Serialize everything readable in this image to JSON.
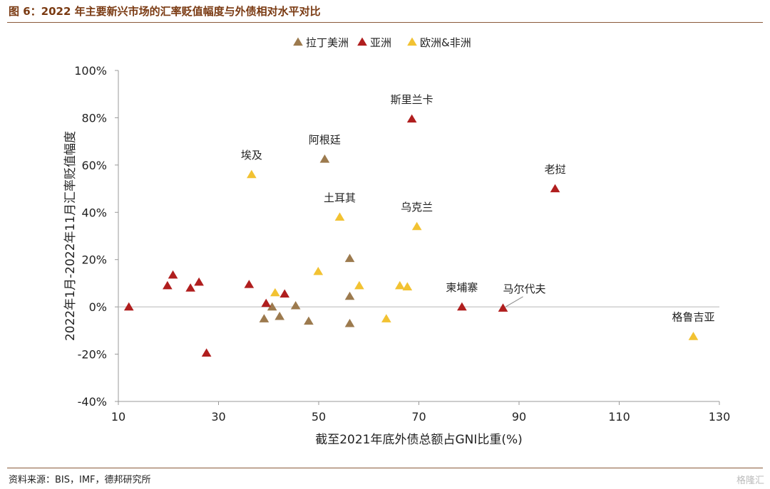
{
  "header": {
    "title": "图 6：2022 年主要新兴市场的汇率贬值幅度与外债相对水平对比"
  },
  "footer": {
    "source": "资料来源：BIS，IMF，德邦研究所",
    "watermark": "格隆汇"
  },
  "colors": {
    "latin_america": "#9c7a4e",
    "asia": "#b01e1e",
    "europe_africa": "#f2c232",
    "title": "#7a3a12",
    "rule": "#8a5a3a"
  },
  "chart_data": {
    "type": "scatter",
    "xlabel": "截至2021年底外债总额占GNI比重(%)",
    "ylabel": "2022年1月-2022年11月汇率贬值幅度",
    "xlim": [
      10,
      130
    ],
    "ylim": [
      -40,
      100
    ],
    "x_ticks": [
      "10",
      "30",
      "50",
      "70",
      "90",
      "110",
      "130"
    ],
    "y_ticks": [
      "-40%",
      "-20%",
      "0%",
      "20%",
      "40%",
      "60%",
      "80%",
      "100%"
    ],
    "grid": false,
    "legend_position": "top",
    "series": [
      {
        "name": "拉丁美洲",
        "color": "#9c7a4e",
        "points": [
          [
            51.2,
            62.5
          ],
          [
            56.2,
            20.5
          ],
          [
            56.2,
            4.5
          ],
          [
            56.2,
            -7
          ],
          [
            45.4,
            0.5
          ],
          [
            39.1,
            -5
          ],
          [
            40.7,
            0
          ],
          [
            42.2,
            -4
          ],
          [
            48,
            -6
          ]
        ]
      },
      {
        "name": "亚洲",
        "color": "#b01e1e",
        "points": [
          [
            68.6,
            79.5
          ],
          [
            97.2,
            50
          ],
          [
            12.1,
            0
          ],
          [
            19.8,
            9
          ],
          [
            20.9,
            13.5
          ],
          [
            24.4,
            8
          ],
          [
            26.1,
            10.5
          ],
          [
            36.1,
            9.5
          ],
          [
            39.5,
            1.5
          ],
          [
            43.2,
            5.5
          ],
          [
            27.6,
            -19.5
          ],
          [
            78.6,
            0
          ],
          [
            86.8,
            -0.5
          ]
        ]
      },
      {
        "name": "欧洲&非洲",
        "color": "#f2c232",
        "points": [
          [
            36.6,
            56
          ],
          [
            54.2,
            38
          ],
          [
            69.6,
            34
          ],
          [
            49.9,
            15
          ],
          [
            41.3,
            6
          ],
          [
            58.1,
            9
          ],
          [
            66.2,
            9
          ],
          [
            67.7,
            8.5
          ],
          [
            63.5,
            -5
          ],
          [
            124.8,
            -12.5
          ]
        ]
      }
    ],
    "annotations": [
      {
        "text": "斯里兰卡",
        "x": 68.6,
        "y": 79.5
      },
      {
        "text": "阿根廷",
        "x": 51.2,
        "y": 62.5
      },
      {
        "text": "埃及",
        "x": 36.6,
        "y": 56
      },
      {
        "text": "老挝",
        "x": 97.2,
        "y": 50
      },
      {
        "text": "土耳其",
        "x": 54.2,
        "y": 38
      },
      {
        "text": "乌克兰",
        "x": 69.6,
        "y": 34
      },
      {
        "text": "柬埔寨",
        "x": 78.6,
        "y": 0
      },
      {
        "text": "马尔代夫",
        "x": 86.8,
        "y": -0.5
      },
      {
        "text": "格鲁吉亚",
        "x": 124.8,
        "y": -12.5
      }
    ]
  }
}
